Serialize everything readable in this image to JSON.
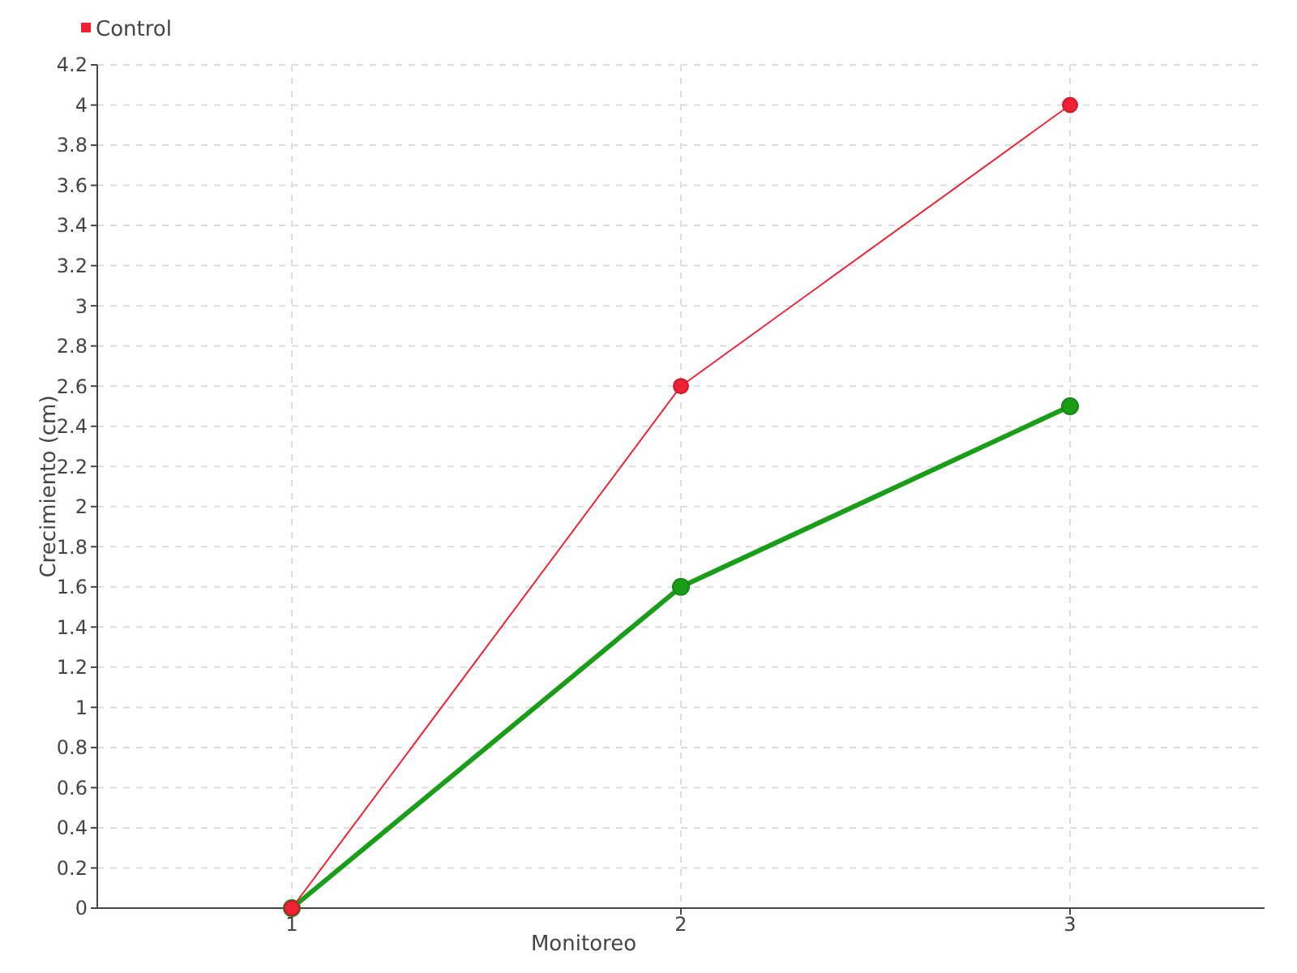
{
  "chart_data": {
    "type": "line",
    "xlabel": "Monitoreo",
    "ylabel": "Crecimiento (cm)",
    "x": [
      1,
      2,
      3
    ],
    "xlim": [
      0.5,
      3.5
    ],
    "xticks": [
      1,
      2,
      3
    ],
    "ylim": [
      0,
      4.2
    ],
    "yticks": [
      0,
      0.2,
      0.4,
      0.6,
      0.8,
      1,
      1.2,
      1.4,
      1.6,
      1.8,
      2,
      2.2,
      2.4,
      2.6,
      2.8,
      3,
      3.2,
      3.4,
      3.6,
      3.8,
      4,
      4.2
    ],
    "series": [
      {
        "color": "#1a9e1a",
        "values": [
          0,
          1.6,
          2.5
        ]
      },
      {
        "name": "Control",
        "color": "#ee2233",
        "values": [
          0,
          2.6,
          4.0
        ]
      }
    ],
    "grid": true,
    "legend": "top left",
    "marker": "circle",
    "line_style": "solid"
  }
}
